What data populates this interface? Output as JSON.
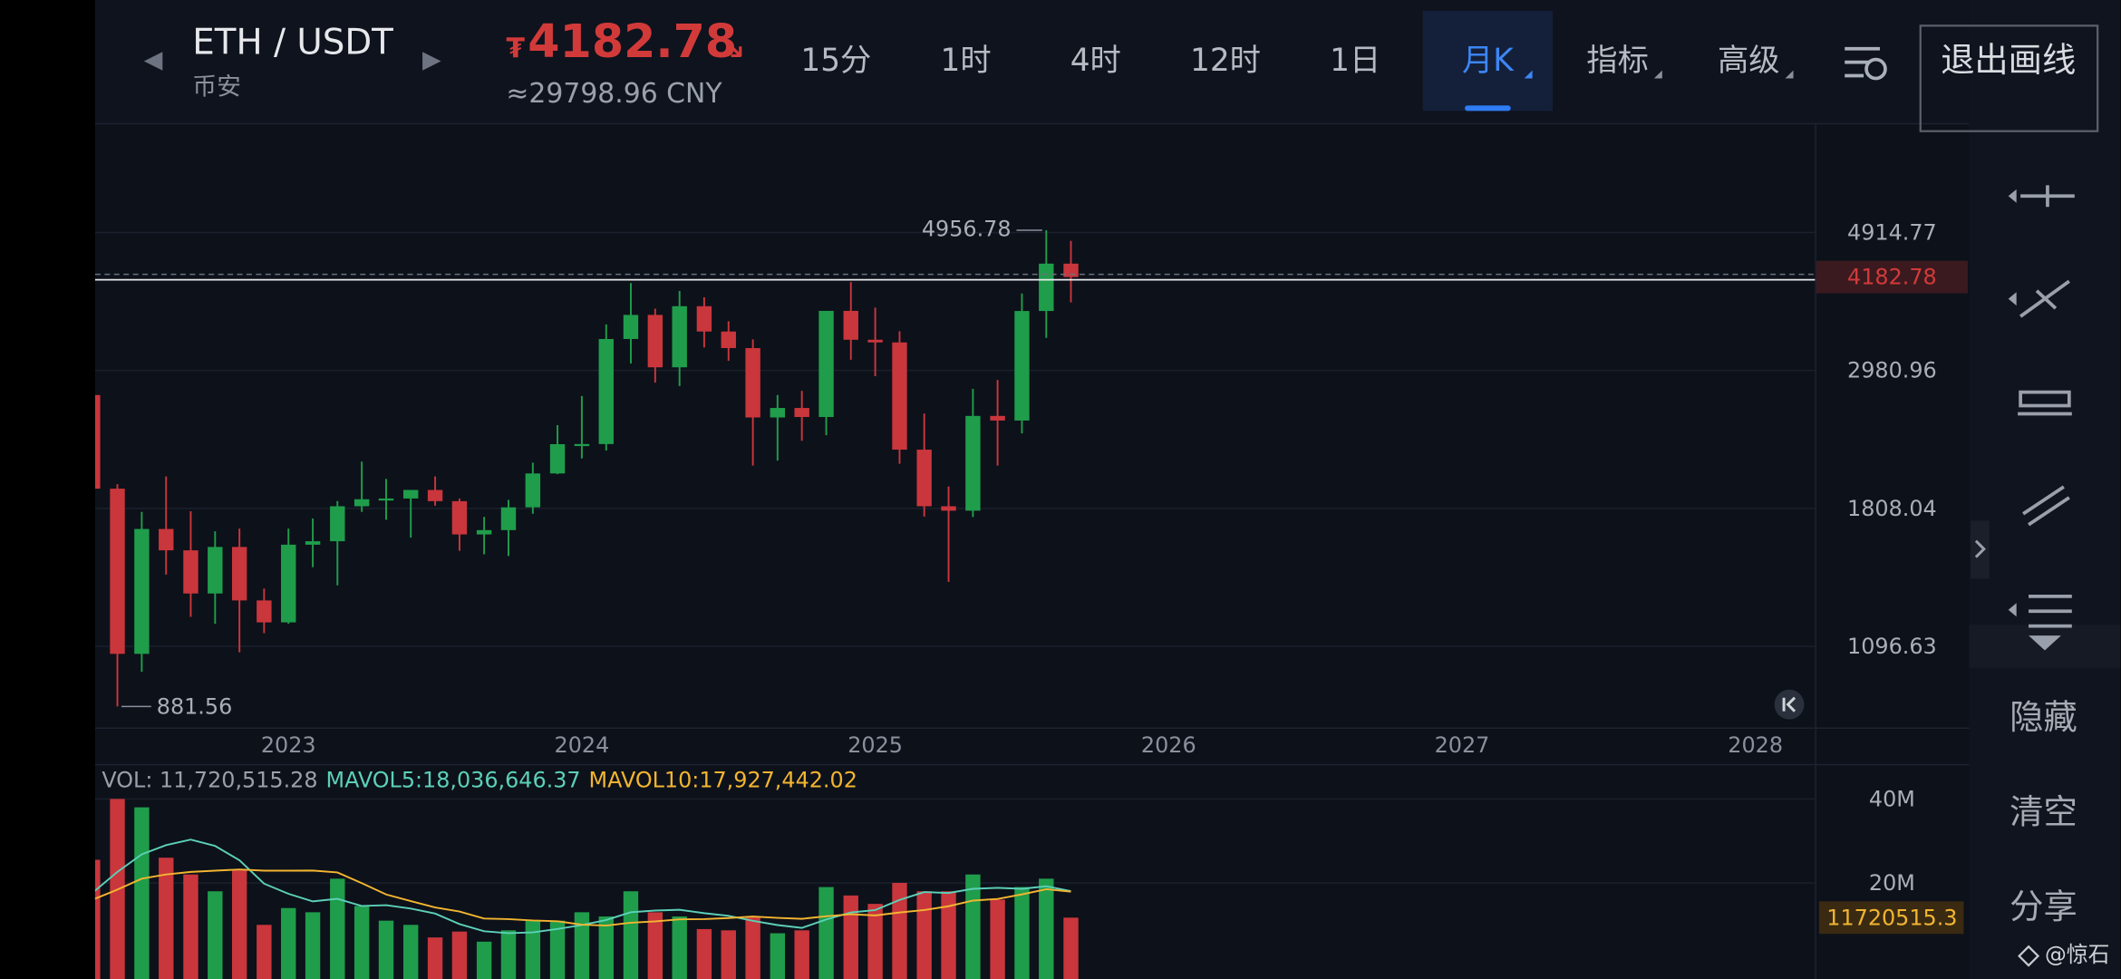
{
  "header": {
    "prev_icon": "◀",
    "pair": "ETH / USDT",
    "exchange": "币安",
    "next_icon": "▶",
    "price_symbol": "₮",
    "trend_icon": "↘",
    "cny": "≈29798.96 CNY"
  },
  "toolbar": {
    "tabs": [
      {
        "label": "15分"
      },
      {
        "label": "1时"
      },
      {
        "label": "4时"
      },
      {
        "label": "12时"
      },
      {
        "label": "1日"
      },
      {
        "label": "月K",
        "menu": true
      },
      {
        "label": "指标",
        "menu": true
      },
      {
        "label": "高级",
        "menu": true
      }
    ],
    "active": "月K",
    "exit_button": "退出画线"
  },
  "sidebar": {
    "items": [
      "隐藏",
      "清空",
      "分享"
    ],
    "watermark": "@惊石"
  },
  "chart_data": [
    {
      "type": "candlestick",
      "x": [
        2022.333,
        2022.417,
        2022.5,
        2022.583,
        2022.667,
        2022.75,
        2022.833,
        2022.917,
        2023,
        2023.083,
        2023.167,
        2023.25,
        2023.333,
        2023.417,
        2023.5,
        2023.583,
        2023.667,
        2023.75,
        2023.833,
        2023.917,
        2024,
        2024.083,
        2024.167,
        2024.25,
        2024.333,
        2024.417,
        2024.5,
        2024.583,
        2024.667,
        2024.75,
        2024.833,
        2024.917,
        2025,
        2025.083,
        2025.167,
        2025.25,
        2025.333,
        2025.417,
        2025.5,
        2025.583,
        2025.667
      ],
      "open": [
        2727,
        1942,
        1067,
        1678,
        1553,
        1328,
        1572,
        1295,
        1196,
        1585,
        1605,
        1822,
        1869,
        1874,
        1933,
        1856,
        1645,
        1671,
        1815,
        2052,
        2282,
        2283,
        3341,
        3646,
        3015,
        3763,
        3433,
        3233,
        2514,
        2602,
        2518,
        3700,
        3332,
        3300,
        2237,
        1822,
        1793,
        2528,
        2486,
        3698,
        4391
      ],
      "high": [
        2960,
        1974,
        1785,
        2030,
        1789,
        1664,
        1680,
        1352,
        1680,
        1743,
        1857,
        2142,
        2012,
        1930,
        2030,
        1874,
        1753,
        1865,
        2134,
        2445,
        2717,
        3523,
        4093,
        3730,
        3977,
        3887,
        3563,
        3337,
        2727,
        2769,
        3682,
        4107,
        3744,
        3435,
        2550,
        1957,
        2788,
        2880,
        3941,
        4956.78,
        4769
      ],
      "low": [
        1700,
        881.56,
        1000,
        1422,
        1220,
        1190,
        1073,
        1150,
        1190,
        1461,
        1368,
        1785,
        1735,
        1626,
        1826,
        1550,
        1531,
        1521,
        1773,
        2047,
        2167,
        2230,
        3057,
        2852,
        2817,
        3240,
        3087,
        2111,
        2150,
        2310,
        2357,
        3099,
        2920,
        2125,
        1755,
        1385,
        1752,
        2111,
        2373,
        3355,
        3815
      ],
      "close": [
        1942,
        1067,
        1678,
        1553,
        1328,
        1572,
        1295,
        1196,
        1585,
        1605,
        1822,
        1869,
        1874,
        1933,
        1856,
        1645,
        1671,
        1815,
        2052,
        2282,
        2283,
        3341,
        3646,
        3015,
        3763,
        3433,
        3233,
        2514,
        2602,
        2518,
        3700,
        3332,
        3300,
        2237,
        1822,
        1793,
        2528,
        2486,
        3698,
        4391,
        4182.78
      ],
      "up_color": "#1f9d4b",
      "down_color": "#c9363c",
      "xlim": [
        2022.341,
        2028.203
      ],
      "xticks": [
        2023,
        2024,
        2025,
        2026,
        2027,
        2028
      ],
      "ylim": [
        817,
        7274
      ],
      "log_scale": true,
      "yticks": [
        4914.77,
        2980.96,
        1808.04,
        1096.63
      ],
      "grid": true,
      "last_price": 4182.78
    },
    {
      "type": "bar",
      "series": [
        {
          "name": "VOL: 11,720,515.28",
          "color": "#9aa0ab",
          "values": [
            25.5,
            40,
            38,
            26,
            22,
            18,
            23,
            10,
            14,
            13,
            21,
            14.5,
            11,
            10,
            7,
            8.4,
            6,
            8.7,
            11,
            11,
            13,
            12,
            18,
            13,
            12,
            9,
            8.7,
            12,
            8,
            8.7,
            19,
            17,
            15,
            20,
            18,
            18,
            22,
            16,
            19,
            21,
            11.72051528
          ]
        },
        {
          "name": "MAVOL5:18,036,646.37",
          "color": "#5cd0b8",
          "values": [
            17.7,
            22.6,
            26.8,
            29,
            30.3,
            28.8,
            25.4,
            19.8,
            17.4,
            15.6,
            16.2,
            14.5,
            14.7,
            13.9,
            12.7,
            10.18,
            8.48,
            8.02,
            8.22,
            9.02,
            9.94,
            11.14,
            13,
            13.4,
            13.6,
            12.8,
            12.14,
            10.94,
            9.94,
            9.28,
            11.28,
            12.94,
            13.54,
            15.94,
            17.8,
            17.6,
            18.6,
            18.8,
            18.6,
            19.2,
            18.03664637
          ]
        },
        {
          "name": "MAVOL10:17,927,442.02",
          "color": "#f2b530",
          "values": [
            16,
            18.4,
            21,
            22,
            22.6,
            22.9,
            23.2,
            22.9,
            22.9,
            22.95,
            22.5,
            19.95,
            17.25,
            15.65,
            14.15,
            13.19,
            11.49,
            11.36,
            11.06,
            10.86,
            10.06,
            9.81,
            10.51,
            10.81,
            11.31,
            11.37,
            11.64,
            11.97,
            11.67,
            11.44,
            12.04,
            12.54,
            12.24,
            12.94,
            13.54,
            14.44,
            15.77,
            16.17,
            17.27,
            18.5,
            17.92744202
          ]
        }
      ],
      "ylim": [
        0,
        48
      ],
      "yticks": [
        {
          "value": 40,
          "label": "40M"
        },
        {
          "value": 20,
          "label": "20M"
        }
      ],
      "grid": true,
      "last_label": "11720515.3"
    }
  ]
}
